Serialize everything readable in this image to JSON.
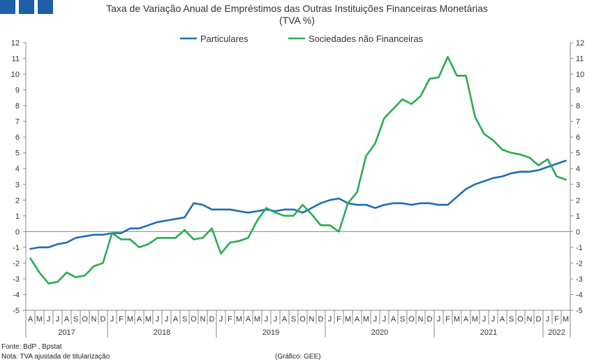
{
  "header": {
    "title": "Taxa de Variação Anual de Empréstimos das Outras Instituições Financeiras Monetárias",
    "subtitle": "(TVA %)",
    "logo_color": "#1f5ea8"
  },
  "footer": {
    "source": "Fonte: BdP , Bpstat",
    "note": "Nota: TVA ajustada de titularização",
    "credit": "(Gráfico: GEE)"
  },
  "chart_data": {
    "type": "line",
    "ylim": [
      -5,
      12
    ],
    "yticks": [
      -5,
      -4,
      -3,
      -2,
      -1,
      0,
      1,
      2,
      3,
      4,
      5,
      6,
      7,
      8,
      9,
      10,
      11,
      12
    ],
    "grid": false,
    "legend_position": "top",
    "month_labels": [
      "A",
      "M",
      "J",
      "J",
      "A",
      "S",
      "O",
      "N",
      "D",
      "J",
      "F",
      "M",
      "A",
      "M",
      "J",
      "J",
      "A",
      "S",
      "O",
      "N",
      "D",
      "J",
      "F",
      "M",
      "A",
      "M",
      "J",
      "J",
      "A",
      "S",
      "O",
      "N",
      "D",
      "J",
      "F",
      "M",
      "A",
      "M",
      "J",
      "J",
      "A",
      "S",
      "O",
      "N",
      "D",
      "J",
      "F",
      "M",
      "A",
      "M",
      "J",
      "J",
      "A",
      "S",
      "O",
      "N",
      "D",
      "J",
      "F",
      "M"
    ],
    "years": [
      {
        "label": "2017",
        "start": 0,
        "count": 9
      },
      {
        "label": "2018",
        "start": 9,
        "count": 12
      },
      {
        "label": "2019",
        "start": 21,
        "count": 12
      },
      {
        "label": "2020",
        "start": 33,
        "count": 12
      },
      {
        "label": "2021",
        "start": 45,
        "count": 12
      },
      {
        "label": "2022",
        "start": 57,
        "count": 3
      }
    ],
    "series": [
      {
        "name": "Particulares",
        "color": "#1f6bb5",
        "values": [
          -1.1,
          -1.0,
          -1.0,
          -0.8,
          -0.7,
          -0.4,
          -0.3,
          -0.2,
          -0.2,
          -0.1,
          -0.1,
          0.2,
          0.2,
          0.4,
          0.6,
          0.7,
          0.8,
          0.9,
          1.8,
          1.7,
          1.4,
          1.4,
          1.4,
          1.3,
          1.2,
          1.3,
          1.4,
          1.3,
          1.4,
          1.4,
          1.2,
          1.5,
          1.8,
          2.0,
          2.1,
          1.8,
          1.7,
          1.7,
          1.5,
          1.7,
          1.8,
          1.8,
          1.7,
          1.8,
          1.8,
          1.7,
          1.7,
          2.2,
          2.7,
          3.0,
          3.2,
          3.4,
          3.5,
          3.7,
          3.8,
          3.8,
          3.9,
          4.1,
          4.3,
          4.5
        ]
      },
      {
        "name": "Sociedades não Financeiras",
        "color": "#2aab4f",
        "values": [
          -1.7,
          -2.6,
          -3.3,
          -3.2,
          -2.6,
          -2.9,
          -2.8,
          -2.2,
          -2.0,
          -0.1,
          -0.5,
          -0.5,
          -1.0,
          -0.8,
          -0.4,
          -0.4,
          -0.4,
          0.1,
          -0.5,
          -0.4,
          0.2,
          -1.4,
          -0.7,
          -0.6,
          -0.4,
          0.7,
          1.5,
          1.2,
          1.0,
          1.0,
          1.7,
          1.1,
          0.4,
          0.4,
          0.0,
          1.8,
          2.5,
          4.8,
          5.6,
          7.2,
          7.8,
          8.4,
          8.1,
          8.6,
          9.7,
          9.8,
          11.1,
          9.9,
          9.9,
          7.3,
          6.2,
          5.8,
          5.2,
          5.0,
          4.9,
          4.7,
          4.2,
          4.6,
          3.5,
          3.3
        ]
      }
    ]
  }
}
